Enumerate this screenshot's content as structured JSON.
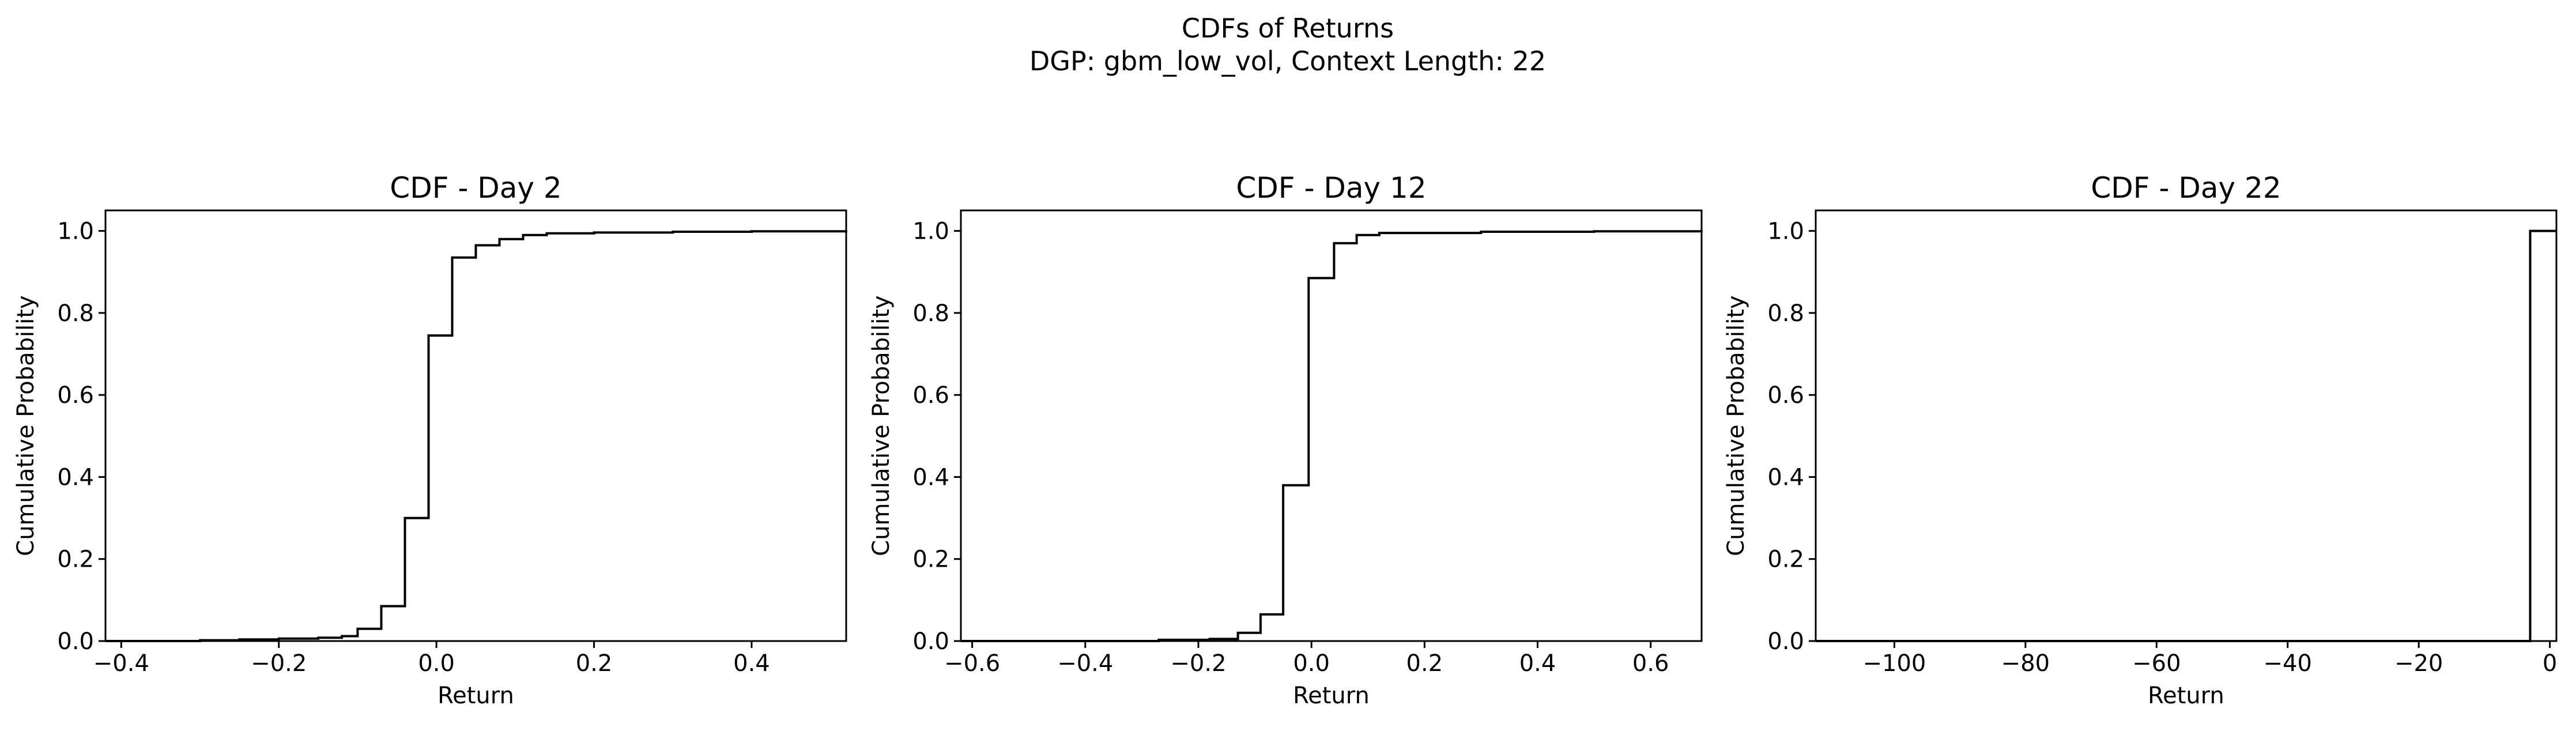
{
  "figure": {
    "title_line1": "CDFs of Returns",
    "title_line2": "DGP: gbm_low_vol, Context Length: 22"
  },
  "chart_data": [
    {
      "type": "line",
      "drawstyle": "steps-post",
      "title": "CDF - Day 2",
      "xlabel": "Return",
      "ylabel": "Cumulative Probability",
      "xlim": [
        -0.42,
        0.52
      ],
      "ylim": [
        0.0,
        1.05
      ],
      "xticks": [
        -0.4,
        -0.2,
        0.0,
        0.2,
        0.4
      ],
      "xtick_labels": [
        "−0.4",
        "−0.2",
        "0.0",
        "0.2",
        "0.4"
      ],
      "yticks": [
        0.0,
        0.2,
        0.4,
        0.6,
        0.8,
        1.0
      ],
      "ytick_labels": [
        "0.0",
        "0.2",
        "0.4",
        "0.6",
        "0.8",
        "1.0"
      ],
      "grid": false,
      "color": "#000000",
      "series": [
        {
          "x": [
            -0.42,
            -0.3,
            -0.25,
            -0.2,
            -0.15,
            -0.12,
            -0.1,
            -0.07,
            -0.04,
            -0.01,
            0.02,
            0.05,
            0.08,
            0.11,
            0.14,
            0.2,
            0.3,
            0.4,
            0.52
          ],
          "y": [
            0.0,
            0.002,
            0.004,
            0.006,
            0.008,
            0.012,
            0.03,
            0.085,
            0.3,
            0.745,
            0.935,
            0.965,
            0.98,
            0.99,
            0.994,
            0.996,
            0.998,
            0.999,
            1.0
          ]
        }
      ]
    },
    {
      "type": "line",
      "drawstyle": "steps-post",
      "title": "CDF - Day 12",
      "xlabel": "Return",
      "ylabel": "Cumulative Probability",
      "xlim": [
        -0.62,
        0.69
      ],
      "ylim": [
        0.0,
        1.05
      ],
      "xticks": [
        -0.6,
        -0.4,
        -0.2,
        0.0,
        0.2,
        0.4,
        0.6
      ],
      "xtick_labels": [
        "−0.6",
        "−0.4",
        "−0.2",
        "0.0",
        "0.2",
        "0.4",
        "0.6"
      ],
      "yticks": [
        0.0,
        0.2,
        0.4,
        0.6,
        0.8,
        1.0
      ],
      "ytick_labels": [
        "0.0",
        "0.2",
        "0.4",
        "0.6",
        "0.8",
        "1.0"
      ],
      "grid": false,
      "color": "#000000",
      "series": [
        {
          "x": [
            -0.62,
            -0.27,
            -0.18,
            -0.13,
            -0.09,
            -0.05,
            -0.005,
            0.04,
            0.08,
            0.12,
            0.3,
            0.5,
            0.69
          ],
          "y": [
            0.0,
            0.003,
            0.005,
            0.02,
            0.065,
            0.38,
            0.885,
            0.97,
            0.99,
            0.995,
            0.998,
            0.999,
            1.0
          ]
        }
      ]
    },
    {
      "type": "line",
      "drawstyle": "steps-post",
      "title": "CDF - Day 22",
      "xlabel": "Return",
      "ylabel": "Cumulative Probability",
      "xlim": [
        -112.0,
        1.0
      ],
      "ylim": [
        0.0,
        1.05
      ],
      "xticks": [
        -100,
        -80,
        -60,
        -40,
        -20,
        0
      ],
      "xtick_labels": [
        "−100",
        "−80",
        "−60",
        "−40",
        "−20",
        "0"
      ],
      "yticks": [
        0.0,
        0.2,
        0.4,
        0.6,
        0.8,
        1.0
      ],
      "ytick_labels": [
        "0.0",
        "0.2",
        "0.4",
        "0.6",
        "0.8",
        "1.0"
      ],
      "grid": false,
      "color": "#000000",
      "series": [
        {
          "x": [
            -112.0,
            -3.0,
            1.0
          ],
          "y": [
            0.0,
            1.0,
            1.0
          ]
        }
      ]
    }
  ]
}
